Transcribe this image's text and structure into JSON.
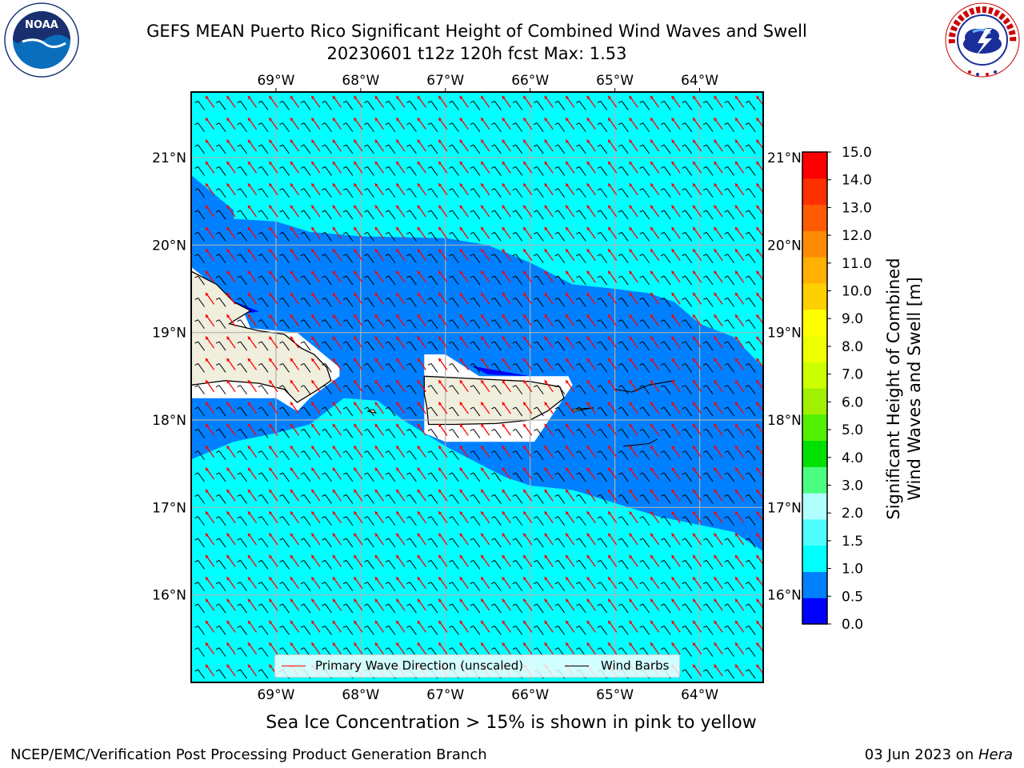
{
  "title_line1": "GEFS MEAN Puerto Rico Significant Height of Combined Wind Waves and Swell",
  "title_line2": "20230601 t12z 120h fcst   Max: 1.53",
  "logos": {
    "left": "noaa-logo",
    "left_text": "NOAA",
    "right": "nws-logo"
  },
  "map": {
    "type": "heatmap",
    "lon_ticks": [
      "69°W",
      "68°W",
      "67°W",
      "66°W",
      "65°W",
      "64°W"
    ],
    "lat_ticks": [
      "21°N",
      "20°N",
      "19°N",
      "18°N",
      "17°N",
      "16°N"
    ],
    "lon_range": [
      -70.0,
      -63.25
    ],
    "lat_range": [
      15.0,
      21.75
    ],
    "grid": true,
    "ocean_color_low": "#0080ff",
    "ocean_color_mid": "#00ffff",
    "land_color": "#f0eedc",
    "wave_arrow_color": "#ff0000",
    "barb_color": "#000000"
  },
  "legend": {
    "placement": "bottom-center",
    "items": [
      {
        "label": "Primary Wave Direction (unscaled)",
        "color": "#ff0000"
      },
      {
        "label": "Wind Barbs",
        "color": "#000000"
      }
    ]
  },
  "colorbar": {
    "label_line1": "Significant Height of Combined",
    "label_line2": "Wind Waves and Swell [m]",
    "ticks": [
      "0.0",
      "0.5",
      "1.0",
      "1.5",
      "2.0",
      "3.0",
      "4.0",
      "5.0",
      "6.0",
      "7.0",
      "8.0",
      "9.0",
      "10.0",
      "11.0",
      "12.0",
      "13.0",
      "14.0",
      "15.0"
    ],
    "colors": [
      "#0000ff",
      "#0080ff",
      "#00ffff",
      "#4dffff",
      "#b0ffff",
      "#4dff80",
      "#00e000",
      "#50f000",
      "#a0f000",
      "#ccff00",
      "#f0ff00",
      "#ffff00",
      "#ffd000",
      "#ffb000",
      "#ff8c00",
      "#ff5a00",
      "#ff3000",
      "#ff0000"
    ]
  },
  "sea_ice_note": "Sea Ice Concentration > 15% is shown in pink to yellow",
  "footer_left": "NCEP/EMC/Verification Post Processing Product Generation Branch",
  "footer_right_prefix": "03 Jun 2023 on ",
  "footer_right_host": "Hera"
}
